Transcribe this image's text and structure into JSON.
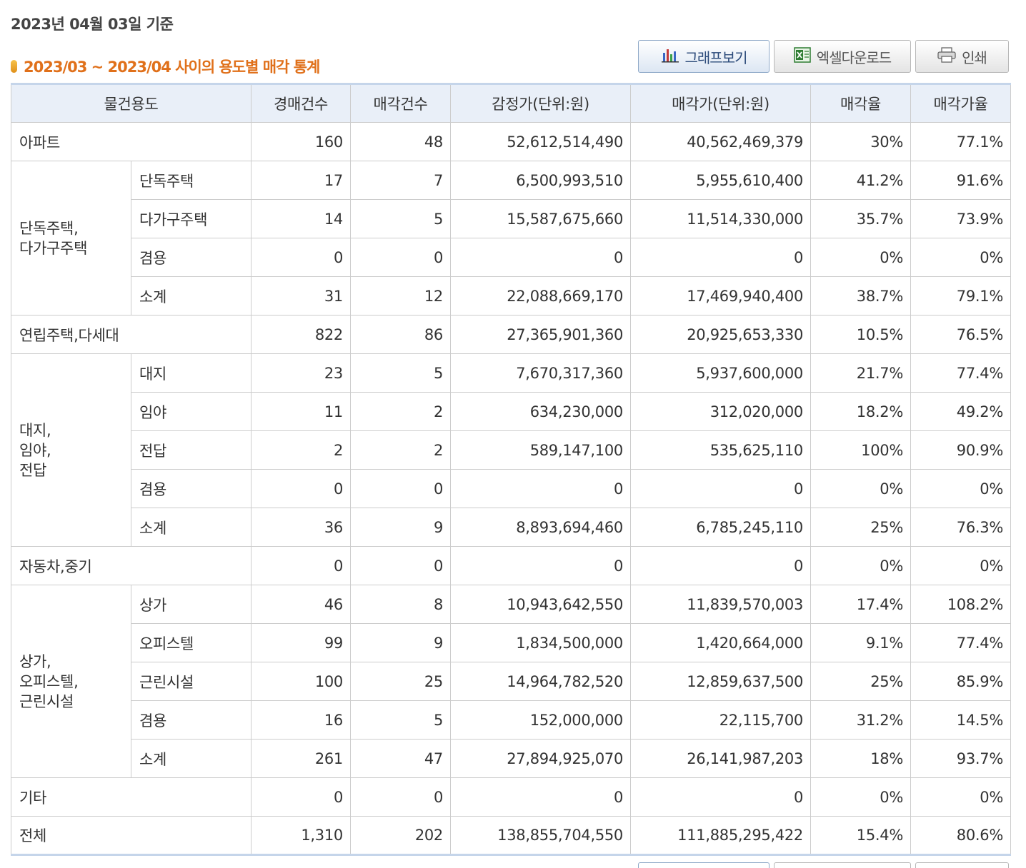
{
  "header": {
    "base_date": "2023년 04월 03일 기준",
    "section_title": "2023/03 ~ 2023/04 사이의 용도별 매각 통계"
  },
  "toolbar": {
    "graph_label": "그래프보기",
    "excel_label": "엑셀다운로드",
    "print_label": "인쇄"
  },
  "table": {
    "columns": [
      "물건용도",
      "경매건수",
      "매각건수",
      "감정가(단위:원)",
      "매각가(단위:원)",
      "매각율",
      "매각가율"
    ],
    "rows": [
      {
        "group": "아파트",
        "cells": [
          "160",
          "48",
          "52,612,514,490",
          "40,562,469,379",
          "30%",
          "77.1%"
        ]
      },
      {
        "group": "단독주택,\n다가구주택",
        "subrows": [
          {
            "label": "단독주택",
            "cells": [
              "17",
              "7",
              "6,500,993,510",
              "5,955,610,400",
              "41.2%",
              "91.6%"
            ]
          },
          {
            "label": "다가구주택",
            "cells": [
              "14",
              "5",
              "15,587,675,660",
              "11,514,330,000",
              "35.7%",
              "73.9%"
            ]
          },
          {
            "label": "겸용",
            "cells": [
              "0",
              "0",
              "0",
              "0",
              "0%",
              "0%"
            ]
          },
          {
            "label": "소계",
            "cells": [
              "31",
              "12",
              "22,088,669,170",
              "17,469,940,400",
              "38.7%",
              "79.1%"
            ]
          }
        ]
      },
      {
        "group": "연립주택,다세대",
        "cells": [
          "822",
          "86",
          "27,365,901,360",
          "20,925,653,330",
          "10.5%",
          "76.5%"
        ]
      },
      {
        "group": "대지,\n임야,\n전답",
        "subrows": [
          {
            "label": "대지",
            "cells": [
              "23",
              "5",
              "7,670,317,360",
              "5,937,600,000",
              "21.7%",
              "77.4%"
            ]
          },
          {
            "label": "임야",
            "cells": [
              "11",
              "2",
              "634,230,000",
              "312,020,000",
              "18.2%",
              "49.2%"
            ]
          },
          {
            "label": "전답",
            "cells": [
              "2",
              "2",
              "589,147,100",
              "535,625,110",
              "100%",
              "90.9%"
            ]
          },
          {
            "label": "겸용",
            "cells": [
              "0",
              "0",
              "0",
              "0",
              "0%",
              "0%"
            ]
          },
          {
            "label": "소계",
            "cells": [
              "36",
              "9",
              "8,893,694,460",
              "6,785,245,110",
              "25%",
              "76.3%"
            ]
          }
        ]
      },
      {
        "group": "자동차,중기",
        "cells": [
          "0",
          "0",
          "0",
          "0",
          "0%",
          "0%"
        ]
      },
      {
        "group": "상가,\n오피스텔,\n근린시설",
        "subrows": [
          {
            "label": "상가",
            "cells": [
              "46",
              "8",
              "10,943,642,550",
              "11,839,570,003",
              "17.4%",
              "108.2%"
            ]
          },
          {
            "label": "오피스텔",
            "cells": [
              "99",
              "9",
              "1,834,500,000",
              "1,420,664,000",
              "9.1%",
              "77.4%"
            ]
          },
          {
            "label": "근린시설",
            "cells": [
              "100",
              "25",
              "14,964,782,520",
              "12,859,637,500",
              "25%",
              "85.9%"
            ]
          },
          {
            "label": "겸용",
            "cells": [
              "16",
              "5",
              "152,000,000",
              "22,115,700",
              "31.2%",
              "14.5%"
            ]
          },
          {
            "label": "소계",
            "cells": [
              "261",
              "47",
              "27,894,925,070",
              "26,141,987,203",
              "18%",
              "93.7%"
            ]
          }
        ]
      },
      {
        "group": "기타",
        "cells": [
          "0",
          "0",
          "0",
          "0",
          "0%",
          "0%"
        ]
      },
      {
        "group": "전체",
        "cells": [
          "1,310",
          "202",
          "138,855,704,550",
          "111,885,295,422",
          "15.4%",
          "80.6%"
        ]
      }
    ]
  }
}
